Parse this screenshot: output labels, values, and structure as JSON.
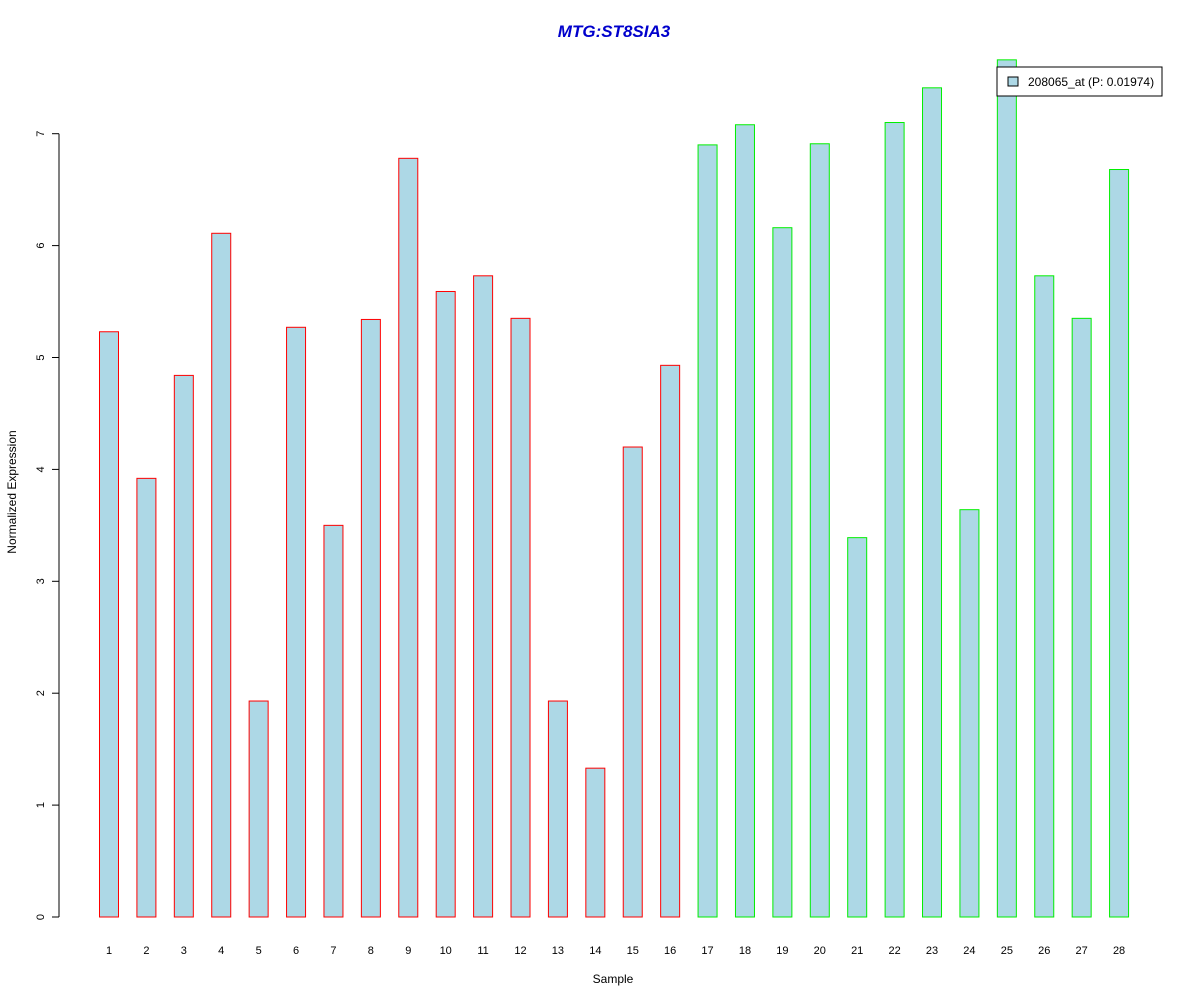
{
  "chart_data": {
    "type": "bar",
    "title": "MTG:ST8SIA3",
    "xlabel": "Sample",
    "ylabel": "Normalized Expression",
    "categories": [
      "1",
      "2",
      "3",
      "4",
      "5",
      "6",
      "7",
      "8",
      "9",
      "10",
      "11",
      "12",
      "13",
      "14",
      "15",
      "16",
      "17",
      "18",
      "19",
      "20",
      "21",
      "22",
      "23",
      "24",
      "25",
      "26",
      "27",
      "28"
    ],
    "series": [
      {
        "name": "208065_at (P: 0.01974)",
        "values": [
          5.23,
          3.92,
          4.84,
          6.11,
          1.93,
          5.27,
          3.5,
          5.34,
          6.78,
          5.59,
          5.73,
          5.35,
          1.93,
          1.33,
          4.2,
          4.93,
          6.9,
          7.08,
          6.16,
          6.91,
          3.39,
          7.1,
          7.41,
          3.64,
          7.66,
          5.73,
          5.35,
          6.68
        ]
      }
    ],
    "group_of_bar": [
      "a",
      "a",
      "a",
      "a",
      "a",
      "a",
      "a",
      "a",
      "a",
      "a",
      "a",
      "a",
      "a",
      "a",
      "a",
      "a",
      "b",
      "b",
      "b",
      "b",
      "b",
      "b",
      "b",
      "b",
      "b",
      "b",
      "b",
      "b"
    ],
    "group_colors": {
      "a": "#ff0000",
      "b": "#00ee00"
    },
    "fill_color": "#add8e6",
    "title_color": "#0000cc",
    "yticks": [
      0,
      1,
      2,
      3,
      4,
      5,
      6,
      7
    ],
    "ylim": [
      0,
      7.7
    ],
    "grid": false,
    "legend_position": "top-right"
  }
}
